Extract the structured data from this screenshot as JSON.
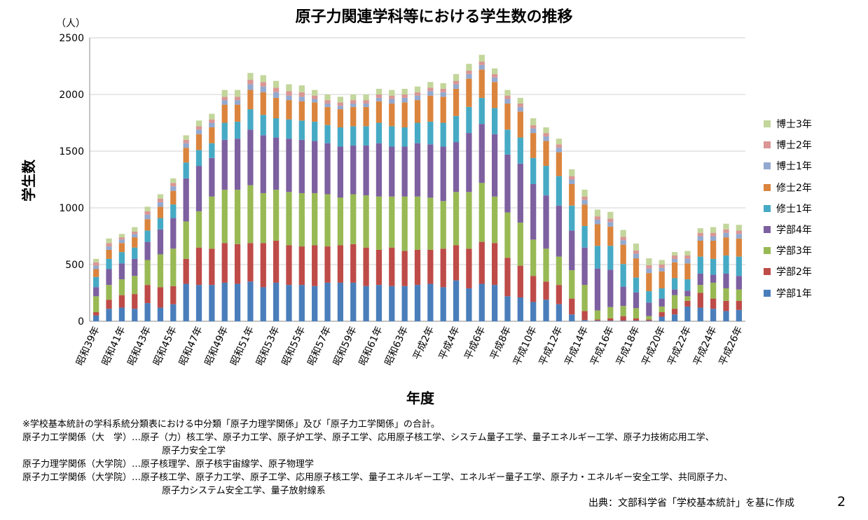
{
  "page": {
    "title": "原子力関連学科等における学生数の推移",
    "notes": [
      "※学校基本統計の学科系統分類表における中分類「原子力理学関係」及び「原子力工学関係」の合計。",
      "原子力工学関係（大　学）…原子（力）核工学、原子力工学、原子炉工学、原子工学、応用原子核工学、システム量子工学、量子エネルギー工学、原子力技術応用工学、",
      "原子力安全工学",
      "原子力理学関係（大学院）…原子核理学、原子核宇宙線学、原子物理学",
      "原子力工学関係（大学院）…原子核工学、原子力工学、原子工学、応用原子核工学、量子エネルギー工学、エネルギー量子工学、原子力・エネルギー安全工学、共同原子力、",
      "原子力システム安全工学、量子放射線系"
    ],
    "source": "出典：文部科学省「学校基本統計」を基に作成",
    "page_number": "2"
  },
  "chart_data": {
    "type": "bar",
    "stacked": true,
    "title": "原子力関連学科等における学生数の推移",
    "ylabel": "学生数",
    "y_unit": "（人）",
    "xlabel": "年度",
    "ylim": [
      0,
      2500
    ],
    "yticks": [
      0,
      500,
      1000,
      1500,
      2000,
      2500
    ],
    "grid": true,
    "legend_position": "right",
    "categories": [
      "昭和39年",
      "昭和40年",
      "昭和41年",
      "昭和42年",
      "昭和43年",
      "昭和44年",
      "昭和45年",
      "昭和46年",
      "昭和47年",
      "昭和48年",
      "昭和49年",
      "昭和50年",
      "昭和51年",
      "昭和52年",
      "昭和53年",
      "昭和54年",
      "昭和55年",
      "昭和56年",
      "昭和57年",
      "昭和58年",
      "昭和59年",
      "昭和60年",
      "昭和61年",
      "昭和62年",
      "昭和63年",
      "平成元年",
      "平成2年",
      "平成3年",
      "平成4年",
      "平成5年",
      "平成6年",
      "平成7年",
      "平成8年",
      "平成9年",
      "平成10年",
      "平成11年",
      "平成12年",
      "平成13年",
      "平成14年",
      "平成15年",
      "平成16年",
      "平成17年",
      "平成18年",
      "平成19年",
      "平成20年",
      "平成21年",
      "平成22年",
      "平成23年",
      "平成24年",
      "平成25年",
      "平成26年"
    ],
    "tick_labels": [
      "昭和39年",
      "昭和41年",
      "昭和43年",
      "昭和45年",
      "昭和47年",
      "昭和49年",
      "昭和51年",
      "昭和53年",
      "昭和55年",
      "昭和57年",
      "昭和59年",
      "昭和61年",
      "昭和63年",
      "平成2年",
      "平成4年",
      "平成6年",
      "平成8年",
      "平成10年",
      "平成12年",
      "平成14年",
      "平成16年",
      "平成18年",
      "平成20年",
      "平成22年",
      "平成24年",
      "平成26年"
    ],
    "series": [
      {
        "name": "学部1年",
        "color": "#4a7ebb",
        "values": [
          50,
          110,
          120,
          110,
          160,
          120,
          150,
          330,
          320,
          320,
          340,
          330,
          350,
          300,
          340,
          320,
          320,
          310,
          340,
          340,
          340,
          310,
          320,
          310,
          310,
          320,
          330,
          300,
          360,
          290,
          330,
          320,
          220,
          210,
          170,
          190,
          150,
          60,
          10,
          5,
          5,
          5,
          5,
          5,
          40,
          60,
          130,
          120,
          110,
          90,
          100
        ]
      },
      {
        "name": "学部2年",
        "color": "#be4b48",
        "values": [
          30,
          80,
          110,
          130,
          160,
          180,
          160,
          220,
          330,
          320,
          350,
          350,
          340,
          390,
          370,
          350,
          340,
          360,
          320,
          330,
          340,
          340,
          310,
          340,
          310,
          310,
          300,
          340,
          310,
          350,
          370,
          370,
          340,
          280,
          230,
          160,
          170,
          140,
          80,
          10,
          20,
          40,
          20,
          10,
          40,
          50,
          50,
          130,
          90,
          90,
          80
        ]
      },
      {
        "name": "学部3年",
        "color": "#98b954",
        "values": [
          140,
          130,
          140,
          160,
          220,
          290,
          330,
          330,
          320,
          460,
          470,
          480,
          510,
          440,
          450,
          470,
          470,
          460,
          460,
          420,
          440,
          460,
          470,
          450,
          480,
          470,
          460,
          420,
          470,
          500,
          520,
          410,
          400,
          380,
          320,
          290,
          250,
          250,
          230,
          80,
          100,
          90,
          90,
          30,
          50,
          120,
          40,
          70,
          140,
          110,
          100
        ]
      },
      {
        "name": "学部4年",
        "color": "#7d60a0",
        "values": [
          80,
          140,
          140,
          150,
          160,
          220,
          270,
          380,
          400,
          340,
          440,
          450,
          490,
          510,
          460,
          470,
          470,
          460,
          450,
          450,
          430,
          440,
          470,
          440,
          440,
          470,
          470,
          480,
          440,
          520,
          520,
          550,
          510,
          520,
          490,
          470,
          450,
          350,
          330,
          370,
          330,
          170,
          140,
          120,
          70,
          50,
          50,
          100,
          70,
          130,
          120
        ]
      },
      {
        "name": "修士1年",
        "color": "#46aac5",
        "values": [
          90,
          90,
          100,
          100,
          100,
          100,
          120,
          140,
          140,
          130,
          150,
          150,
          180,
          180,
          170,
          170,
          170,
          170,
          160,
          170,
          170,
          170,
          180,
          180,
          170,
          180,
          200,
          210,
          230,
          230,
          230,
          230,
          220,
          230,
          230,
          260,
          260,
          220,
          190,
          200,
          210,
          200,
          130,
          100,
          90,
          100,
          100,
          150,
          140,
          160,
          170
        ]
      },
      {
        "name": "修士2年",
        "color": "#db843d",
        "values": [
          70,
          80,
          80,
          90,
          100,
          100,
          120,
          130,
          140,
          140,
          160,
          150,
          170,
          200,
          180,
          170,
          170,
          170,
          160,
          160,
          170,
          170,
          190,
          200,
          220,
          200,
          230,
          230,
          240,
          250,
          250,
          230,
          230,
          230,
          220,
          220,
          210,
          190,
          190,
          190,
          170,
          170,
          170,
          160,
          150,
          140,
          140,
          140,
          160,
          160,
          160
        ]
      },
      {
        "name": "博士1年",
        "color": "#93a9cf",
        "values": [
          30,
          30,
          30,
          30,
          40,
          40,
          40,
          40,
          40,
          40,
          40,
          40,
          50,
          50,
          50,
          40,
          40,
          30,
          30,
          30,
          30,
          30,
          30,
          40,
          40,
          40,
          40,
          40,
          40,
          40,
          40,
          40,
          40,
          40,
          40,
          40,
          40,
          40,
          40,
          40,
          40,
          40,
          40,
          40,
          30,
          30,
          40,
          40,
          40,
          40,
          40
        ]
      },
      {
        "name": "博士2年",
        "color": "#d99694",
        "values": [
          30,
          30,
          20,
          20,
          30,
          30,
          30,
          30,
          30,
          30,
          30,
          30,
          40,
          40,
          40,
          40,
          40,
          30,
          30,
          30,
          30,
          30,
          30,
          30,
          30,
          30,
          30,
          30,
          30,
          30,
          30,
          30,
          30,
          30,
          30,
          30,
          30,
          30,
          30,
          30,
          30,
          30,
          30,
          30,
          30,
          30,
          30,
          30,
          30,
          30,
          30
        ]
      },
      {
        "name": "博士3年",
        "color": "#c3d69b",
        "values": [
          30,
          40,
          30,
          40,
          40,
          40,
          40,
          40,
          50,
          50,
          60,
          60,
          60,
          60,
          60,
          60,
          60,
          50,
          50,
          50,
          50,
          50,
          50,
          50,
          50,
          50,
          50,
          50,
          60,
          60,
          60,
          50,
          50,
          50,
          60,
          50,
          50,
          60,
          60,
          60,
          60,
          60,
          60,
          60,
          40,
          30,
          40,
          40,
          50,
          50,
          50
        ]
      }
    ]
  }
}
